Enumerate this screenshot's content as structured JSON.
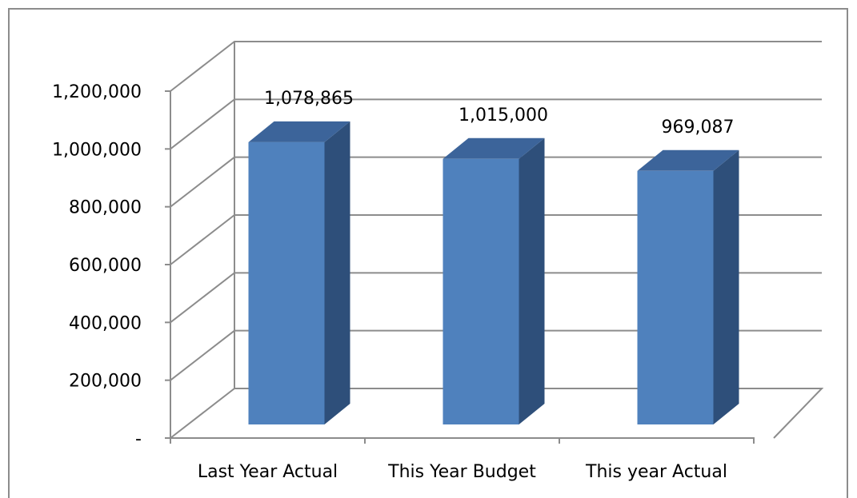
{
  "chart_data": {
    "type": "bar",
    "categories": [
      "Last Year Actual",
      "This Year Budget",
      "This year Actual"
    ],
    "values": [
      1078865,
      1015000,
      969087
    ],
    "data_labels": [
      "1,078,865",
      "1,015,000",
      "969,087"
    ],
    "y_ticks": [
      0,
      200000,
      400000,
      600000,
      800000,
      1000000,
      1200000
    ],
    "y_tick_labels": [
      "-",
      "200,000",
      "400,000",
      "600,000",
      "800,000",
      "1,000,000",
      "1,200,000"
    ],
    "ylim": [
      0,
      1200000
    ],
    "grid": true,
    "legend": "none",
    "style": "3d-column",
    "colors": {
      "bar_front": "#4F81BD",
      "bar_side": "#2E4F7A",
      "bar_top": "#3C649A",
      "gridline": "#8C8C8C"
    }
  }
}
